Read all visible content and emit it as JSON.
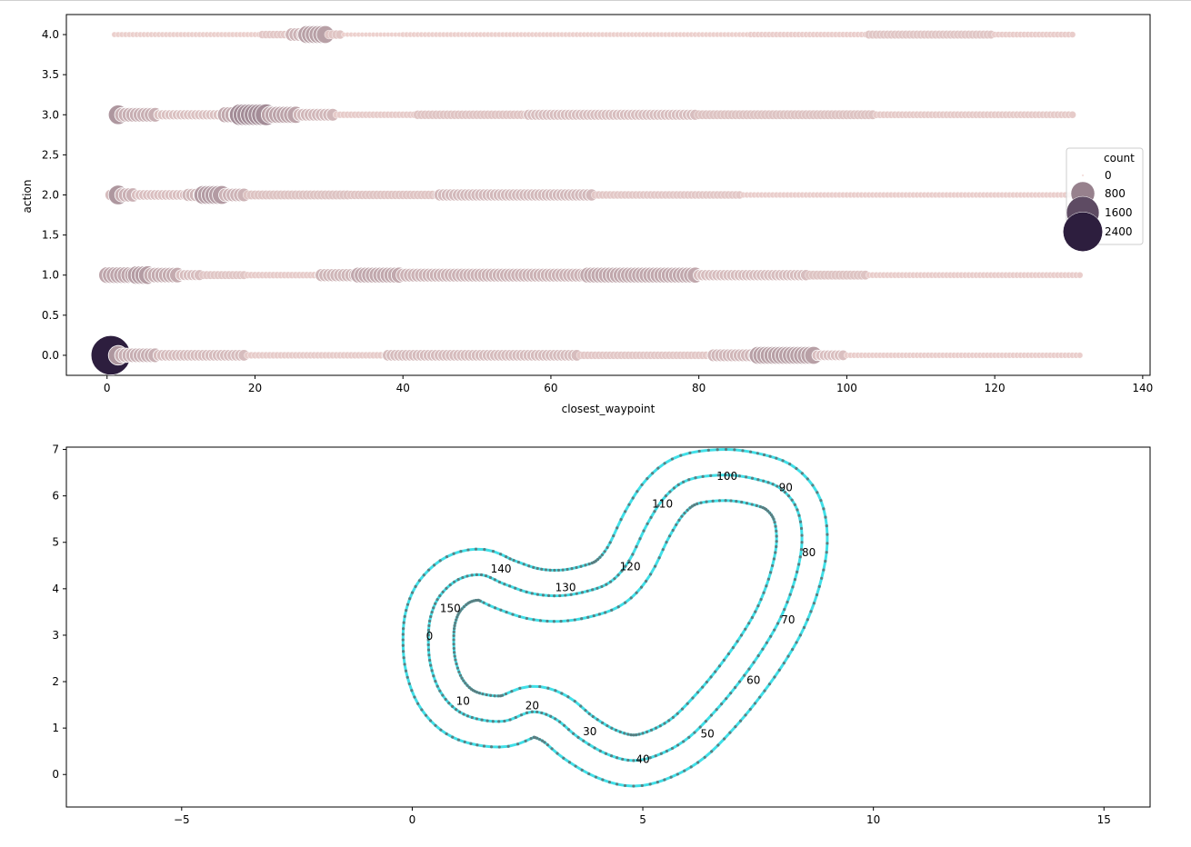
{
  "chart_data": [
    {
      "type": "scatter",
      "xlabel": "closest_waypoint",
      "ylabel": "action",
      "xlim": [
        -5.5,
        141
      ],
      "ylim": [
        -0.25,
        4.25
      ],
      "xticks": [
        0,
        20,
        40,
        60,
        80,
        100,
        120,
        140
      ],
      "xtick_labels": [
        "0",
        "20",
        "40",
        "60",
        "80",
        "100",
        "120",
        "140"
      ],
      "yticks": [
        0.0,
        0.5,
        1.0,
        1.5,
        2.0,
        2.5,
        3.0,
        3.5,
        4.0
      ],
      "ytick_labels": [
        "0.0",
        "0.5",
        "1.0",
        "1.5",
        "2.0",
        "2.5",
        "3.0",
        "3.5",
        "4.0"
      ],
      "size_hue_encoding": "count",
      "legend": {
        "title": "count",
        "placement": "center-right",
        "entries": [
          {
            "label": "0",
            "value": 0
          },
          {
            "label": "800",
            "value": 800
          },
          {
            "label": "1600",
            "value": 1600
          },
          {
            "label": "2400",
            "value": 2400
          }
        ]
      },
      "colors": {
        "low": "#f2d6d2",
        "high": "#2d1e3e"
      },
      "series": [
        {
          "action": 4,
          "segments": [
            {
              "from": 1,
              "to": 21,
              "count": 20
            },
            {
              "from": 21,
              "to": 25,
              "count": 60
            },
            {
              "from": 25,
              "to": 27,
              "count": 220
            },
            {
              "from": 27,
              "to": 30,
              "count": 420
            },
            {
              "from": 30,
              "to": 32,
              "count": 80
            },
            {
              "from": 32,
              "to": 40,
              "count": 12
            },
            {
              "from": 40,
              "to": 87,
              "count": 18
            },
            {
              "from": 87,
              "to": 103,
              "count": 25
            },
            {
              "from": 103,
              "to": 120,
              "count": 70
            },
            {
              "from": 120,
              "to": 131,
              "count": 30
            }
          ]
        },
        {
          "action": 3,
          "segments": [
            {
              "from": 1,
              "to": 2,
              "count": 520
            },
            {
              "from": 2,
              "to": 7,
              "count": 260
            },
            {
              "from": 7,
              "to": 16,
              "count": 110
            },
            {
              "from": 16,
              "to": 18,
              "count": 330
            },
            {
              "from": 18,
              "to": 22,
              "count": 650
            },
            {
              "from": 22,
              "to": 26,
              "count": 380
            },
            {
              "from": 26,
              "to": 31,
              "count": 190
            },
            {
              "from": 31,
              "to": 42,
              "count": 40
            },
            {
              "from": 42,
              "to": 57,
              "count": 80
            },
            {
              "from": 57,
              "to": 80,
              "count": 130
            },
            {
              "from": 80,
              "to": 104,
              "count": 90
            },
            {
              "from": 104,
              "to": 131,
              "count": 45
            }
          ]
        },
        {
          "action": 2,
          "segments": [
            {
              "from": 0,
              "to": 1,
              "count": 150
            },
            {
              "from": 1,
              "to": 2,
              "count": 520
            },
            {
              "from": 2,
              "to": 4,
              "count": 250
            },
            {
              "from": 4,
              "to": 11,
              "count": 120
            },
            {
              "from": 11,
              "to": 13,
              "count": 200
            },
            {
              "from": 13,
              "to": 16,
              "count": 470
            },
            {
              "from": 16,
              "to": 19,
              "count": 220
            },
            {
              "from": 19,
              "to": 33,
              "count": 90
            },
            {
              "from": 33,
              "to": 45,
              "count": 80
            },
            {
              "from": 45,
              "to": 66,
              "count": 170
            },
            {
              "from": 66,
              "to": 86,
              "count": 60
            },
            {
              "from": 86,
              "to": 131,
              "count": 25
            }
          ]
        },
        {
          "action": 1,
          "segments": [
            {
              "from": 0,
              "to": 4,
              "count": 360
            },
            {
              "from": 4,
              "to": 6,
              "count": 460
            },
            {
              "from": 6,
              "to": 10,
              "count": 300
            },
            {
              "from": 10,
              "to": 13,
              "count": 130
            },
            {
              "from": 13,
              "to": 19,
              "count": 70
            },
            {
              "from": 19,
              "to": 29,
              "count": 40
            },
            {
              "from": 29,
              "to": 34,
              "count": 200
            },
            {
              "from": 34,
              "to": 40,
              "count": 330
            },
            {
              "from": 40,
              "to": 65,
              "count": 230
            },
            {
              "from": 65,
              "to": 80,
              "count": 330
            },
            {
              "from": 80,
              "to": 95,
              "count": 140
            },
            {
              "from": 95,
              "to": 103,
              "count": 90
            },
            {
              "from": 103,
              "to": 132,
              "count": 30
            }
          ]
        },
        {
          "action": 0,
          "segments": [
            {
              "from": 0,
              "to": 1,
              "count": 2400
            },
            {
              "from": 1,
              "to": 2,
              "count": 520
            },
            {
              "from": 2,
              "to": 7,
              "count": 260
            },
            {
              "from": 7,
              "to": 19,
              "count": 150
            },
            {
              "from": 19,
              "to": 38,
              "count": 40
            },
            {
              "from": 38,
              "to": 64,
              "count": 150
            },
            {
              "from": 64,
              "to": 82,
              "count": 60
            },
            {
              "from": 82,
              "to": 88,
              "count": 190
            },
            {
              "from": 88,
              "to": 96,
              "count": 420
            },
            {
              "from": 96,
              "to": 100,
              "count": 120
            },
            {
              "from": 100,
              "to": 132,
              "count": 25
            }
          ]
        }
      ]
    },
    {
      "type": "scatter",
      "xlim": [
        -7.5,
        16
      ],
      "ylim": [
        -0.7,
        7.05
      ],
      "xticks": [
        -5,
        0,
        5,
        10,
        15
      ],
      "xtick_labels": [
        "−5",
        "0",
        "5",
        "10",
        "15"
      ],
      "yticks": [
        0,
        1,
        2,
        3,
        4,
        5,
        6,
        7
      ],
      "ytick_labels": [
        "0",
        "1",
        "2",
        "3",
        "4",
        "5",
        "6",
        "7"
      ],
      "grid": false,
      "colors": {
        "track": "#40e0e8",
        "point_edge": "#5a7f82"
      },
      "centerline": [
        [
          0.35,
          2.9
        ],
        [
          0.4,
          2.35
        ],
        [
          0.6,
          1.8
        ],
        [
          0.95,
          1.4
        ],
        [
          1.4,
          1.2
        ],
        [
          2.0,
          1.15
        ],
        [
          2.6,
          1.35
        ],
        [
          3.1,
          1.2
        ],
        [
          3.6,
          0.8
        ],
        [
          4.2,
          0.45
        ],
        [
          4.8,
          0.3
        ],
        [
          5.4,
          0.45
        ],
        [
          6.0,
          0.8
        ],
        [
          6.6,
          1.4
        ],
        [
          7.1,
          2.0
        ],
        [
          7.6,
          2.7
        ],
        [
          8.0,
          3.4
        ],
        [
          8.3,
          4.2
        ],
        [
          8.45,
          5.0
        ],
        [
          8.35,
          5.7
        ],
        [
          8.0,
          6.15
        ],
        [
          7.5,
          6.35
        ],
        [
          6.8,
          6.45
        ],
        [
          6.0,
          6.35
        ],
        [
          5.5,
          6.0
        ],
        [
          5.1,
          5.4
        ],
        [
          4.7,
          4.6
        ],
        [
          4.3,
          4.15
        ],
        [
          3.8,
          3.95
        ],
        [
          3.2,
          3.85
        ],
        [
          2.6,
          3.9
        ],
        [
          2.0,
          4.1
        ],
        [
          1.5,
          4.3
        ],
        [
          1.0,
          4.2
        ],
        [
          0.6,
          3.85
        ],
        [
          0.4,
          3.4
        ]
      ],
      "track_half_width": 0.55,
      "waypoint_labels": [
        {
          "text": "0",
          "x": 0.3,
          "y": 2.9
        },
        {
          "text": "10",
          "x": 0.95,
          "y": 1.5
        },
        {
          "text": "20",
          "x": 2.45,
          "y": 1.4
        },
        {
          "text": "30",
          "x": 3.7,
          "y": 0.85
        },
        {
          "text": "40",
          "x": 4.85,
          "y": 0.25
        },
        {
          "text": "50",
          "x": 6.25,
          "y": 0.8
        },
        {
          "text": "60",
          "x": 7.25,
          "y": 1.95
        },
        {
          "text": "70",
          "x": 8.0,
          "y": 3.25
        },
        {
          "text": "80",
          "x": 8.45,
          "y": 4.7
        },
        {
          "text": "90",
          "x": 7.95,
          "y": 6.1
        },
        {
          "text": "100",
          "x": 6.6,
          "y": 6.35
        },
        {
          "text": "110",
          "x": 5.2,
          "y": 5.75
        },
        {
          "text": "120",
          "x": 4.5,
          "y": 4.4
        },
        {
          "text": "130",
          "x": 3.1,
          "y": 3.95
        },
        {
          "text": "140",
          "x": 1.7,
          "y": 4.35
        },
        {
          "text": "150",
          "x": 0.6,
          "y": 3.5
        }
      ]
    }
  ]
}
